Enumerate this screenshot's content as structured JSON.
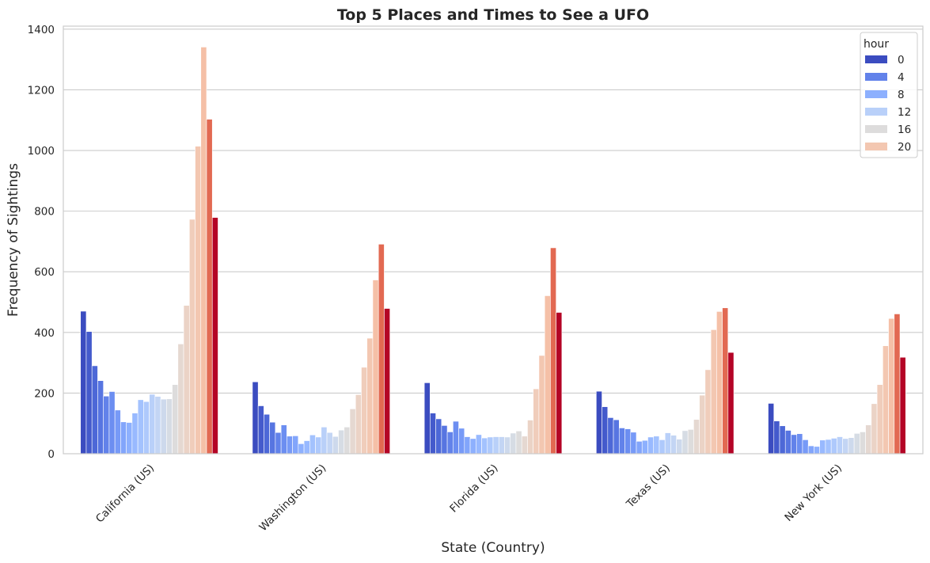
{
  "chart_data": {
    "type": "bar",
    "title": "Top 5 Places and Times to See a UFO",
    "xlabel": "State (Country)",
    "ylabel": "Frequency of Sightings",
    "ylim": [
      0,
      1410
    ],
    "yticks": [
      0,
      200,
      400,
      600,
      800,
      1000,
      1200,
      1400
    ],
    "grid": true,
    "legend_placement": "top-right",
    "legend_title": "hour",
    "legend_entries": [
      "0",
      "4",
      "8",
      "12",
      "16",
      "20"
    ],
    "categories": [
      "California (US)",
      "Washington (US)",
      "Florida (US)",
      "Texas (US)",
      "New York (US)"
    ],
    "hours": [
      0,
      1,
      2,
      3,
      4,
      5,
      6,
      7,
      8,
      9,
      10,
      11,
      12,
      13,
      14,
      15,
      16,
      17,
      18,
      19,
      20,
      21,
      22,
      23
    ],
    "colors": [
      "#3b4cc0",
      "#445acc",
      "#4d68d7",
      "#5775e1",
      "#6282ea",
      "#6c8ef1",
      "#779af7",
      "#82a5fb",
      "#8db0fe",
      "#98b9ff",
      "#a3c2fe",
      "#aec9fc",
      "#b9d0f9",
      "#c3d5f4",
      "#cdd9ec",
      "#d6dce4",
      "#dddcdc",
      "#e5d8d1",
      "#ebd3c6",
      "#f0cdbb",
      "#f3c7b1",
      "#f5c0a7",
      "#e26952",
      "#b40426"
    ],
    "series": [
      {
        "name": "0",
        "values": [
          470,
          237,
          234,
          206,
          166
        ]
      },
      {
        "name": "1",
        "values": [
          403,
          158,
          134,
          155,
          108
        ]
      },
      {
        "name": "2",
        "values": [
          290,
          130,
          115,
          119,
          92
        ]
      },
      {
        "name": "3",
        "values": [
          241,
          104,
          93,
          112,
          77
        ]
      },
      {
        "name": "4",
        "values": [
          190,
          70,
          72,
          85,
          63
        ]
      },
      {
        "name": "5",
        "values": [
          205,
          95,
          107,
          82,
          66
        ]
      },
      {
        "name": "6",
        "values": [
          144,
          58,
          84,
          71,
          46
        ]
      },
      {
        "name": "7",
        "values": [
          105,
          59,
          56,
          41,
          26
        ]
      },
      {
        "name": "8",
        "values": [
          103,
          33,
          50,
          44,
          24
        ]
      },
      {
        "name": "9",
        "values": [
          134,
          43,
          63,
          55,
          45
        ]
      },
      {
        "name": "10",
        "values": [
          178,
          62,
          52,
          58,
          47
        ]
      },
      {
        "name": "11",
        "values": [
          172,
          55,
          55,
          46,
          51
        ]
      },
      {
        "name": "12",
        "values": [
          196,
          88,
          56,
          69,
          56
        ]
      },
      {
        "name": "13",
        "values": [
          189,
          70,
          56,
          61,
          50
        ]
      },
      {
        "name": "14",
        "values": [
          180,
          57,
          55,
          48,
          53
        ]
      },
      {
        "name": "15",
        "values": [
          181,
          78,
          68,
          76,
          67
        ]
      },
      {
        "name": "16",
        "values": [
          228,
          88,
          75,
          80,
          72
        ]
      },
      {
        "name": "17",
        "values": [
          362,
          148,
          58,
          113,
          95
        ]
      },
      {
        "name": "18",
        "values": [
          489,
          195,
          111,
          193,
          165
        ]
      },
      {
        "name": "19",
        "values": [
          773,
          285,
          214,
          277,
          228
        ]
      },
      {
        "name": "20",
        "values": [
          1014,
          381,
          324,
          409,
          356
        ]
      },
      {
        "name": "21",
        "values": [
          1341,
          573,
          521,
          469,
          446
        ]
      },
      {
        "name": "22",
        "values": [
          1103,
          691,
          679,
          481,
          461
        ]
      },
      {
        "name": "23",
        "values": [
          779,
          479,
          466,
          334,
          318
        ]
      }
    ]
  }
}
